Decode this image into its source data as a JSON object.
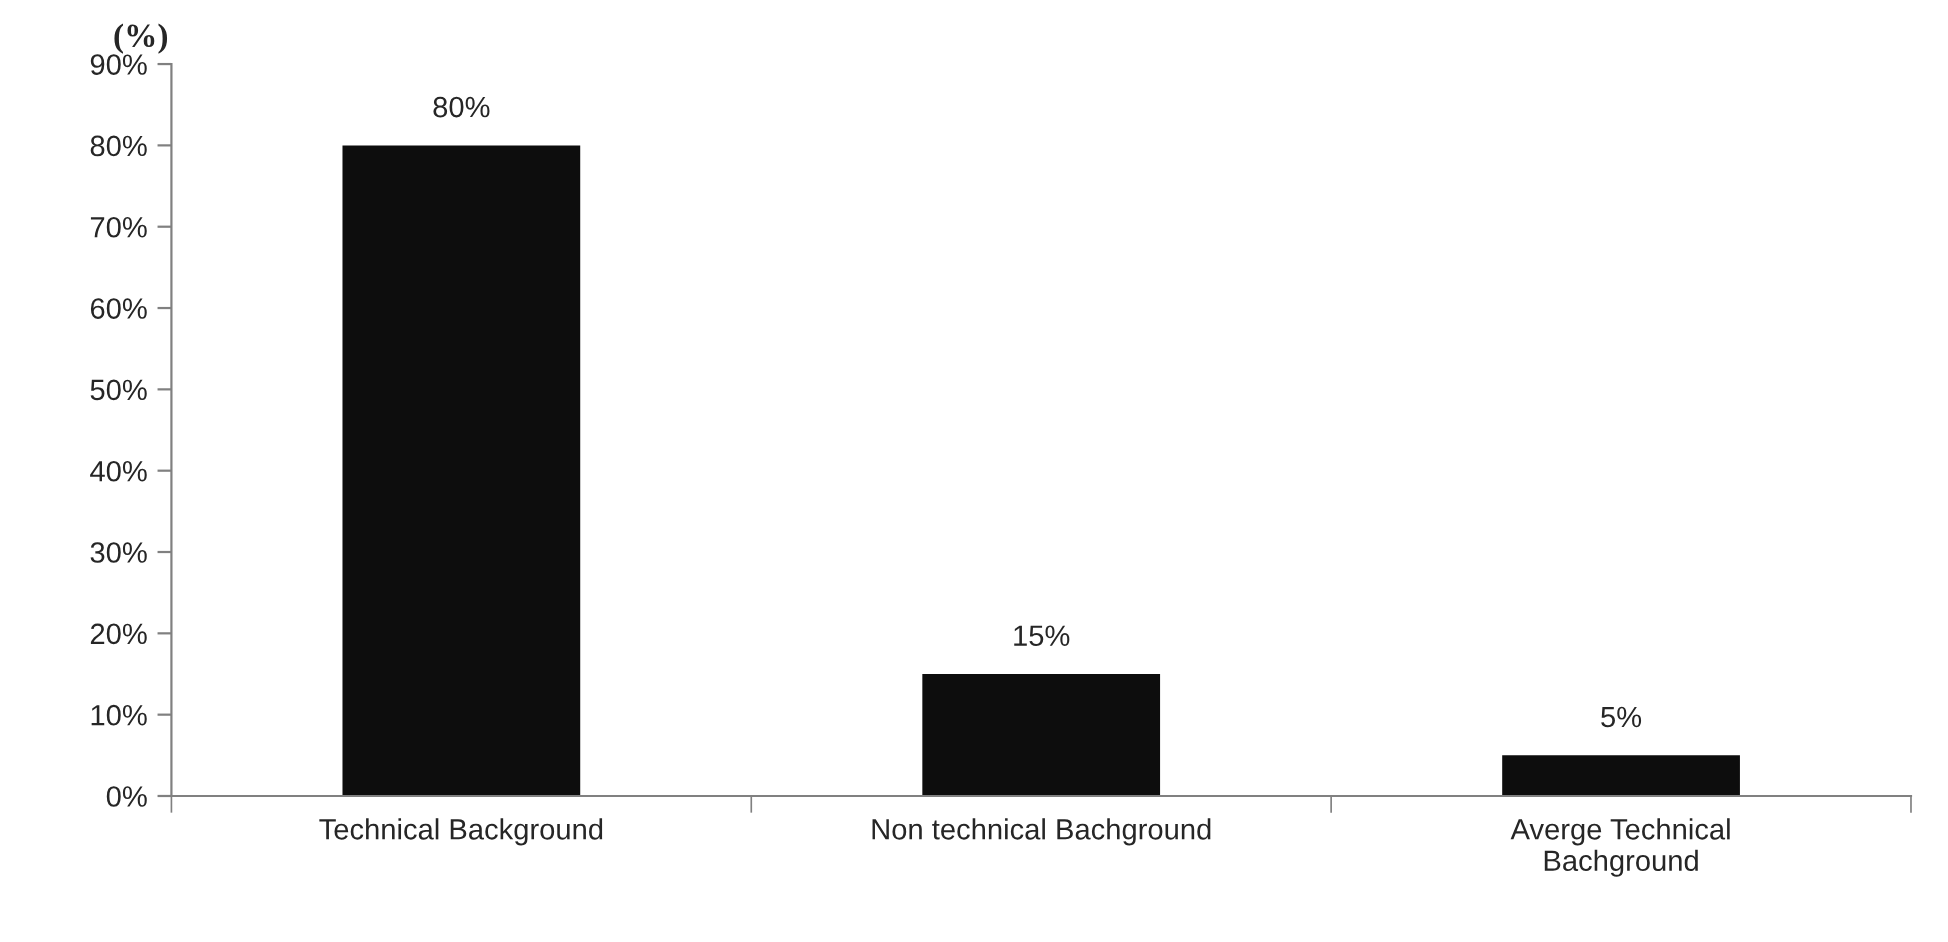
{
  "chart_data": {
    "type": "bar",
    "ylabel": "(%)",
    "categories": [
      "Technical Background",
      "Non technical Bachground",
      "Averge Technical\nBachground"
    ],
    "values": [
      80,
      15,
      5
    ],
    "color": "#0d0d0d",
    "value_labels": [
      "80%",
      "15%",
      "5%"
    ],
    "ylim": [
      0,
      90
    ],
    "yticks": [
      {
        "value": 0,
        "label": "0%"
      },
      {
        "value": 10,
        "label": "10%"
      },
      {
        "value": 20,
        "label": "20%"
      },
      {
        "value": 30,
        "label": "30%"
      },
      {
        "value": 40,
        "label": "40%"
      },
      {
        "value": 50,
        "label": "50%"
      },
      {
        "value": 60,
        "label": "60%"
      },
      {
        "value": 70,
        "label": "70%"
      },
      {
        "value": 80,
        "label": "80%"
      },
      {
        "value": 90,
        "label": "90%"
      }
    ],
    "grid": false,
    "legend": false
  }
}
